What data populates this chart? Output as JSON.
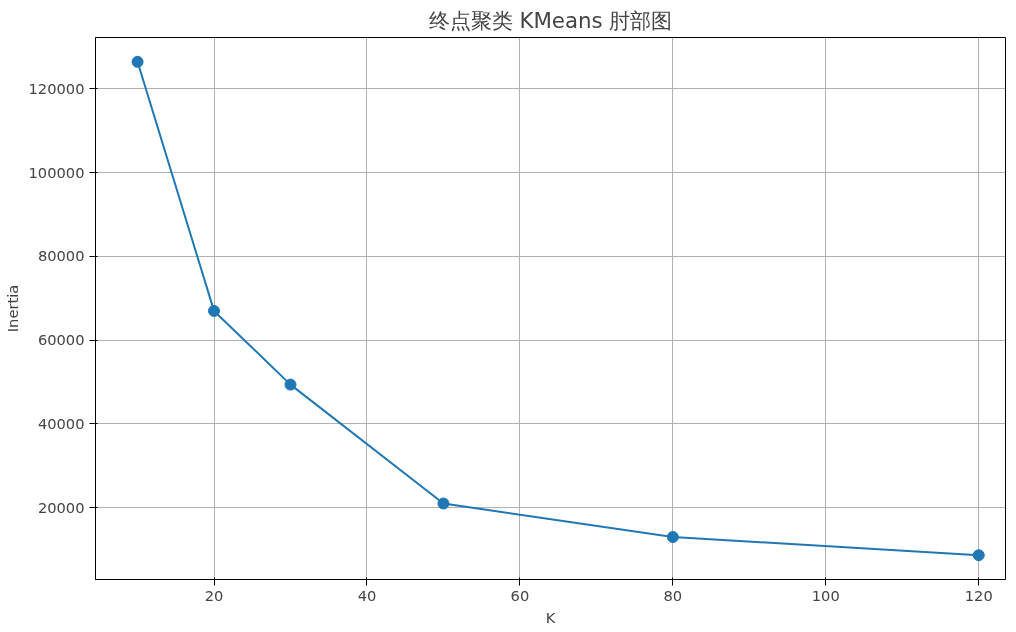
{
  "chart_data": {
    "type": "line",
    "title": "终点聚类 KMeans 肘部图",
    "xlabel": "K",
    "ylabel": "Inertia",
    "x": [
      10,
      20,
      30,
      50,
      80,
      120
    ],
    "series": [
      {
        "color": "#1f77b4",
        "values": [
          126500,
          67000,
          49400,
          21000,
          13000,
          8650
        ]
      }
    ],
    "xlim": [
      4.5,
      123.5
    ],
    "xticks": [
      20,
      40,
      60,
      80,
      100,
      120
    ],
    "ylim": [
      2850,
      132300
    ],
    "yticks": [
      20000,
      40000,
      60000,
      80000,
      100000,
      120000
    ],
    "grid": true,
    "marker": "circle",
    "line_style": "solid"
  }
}
